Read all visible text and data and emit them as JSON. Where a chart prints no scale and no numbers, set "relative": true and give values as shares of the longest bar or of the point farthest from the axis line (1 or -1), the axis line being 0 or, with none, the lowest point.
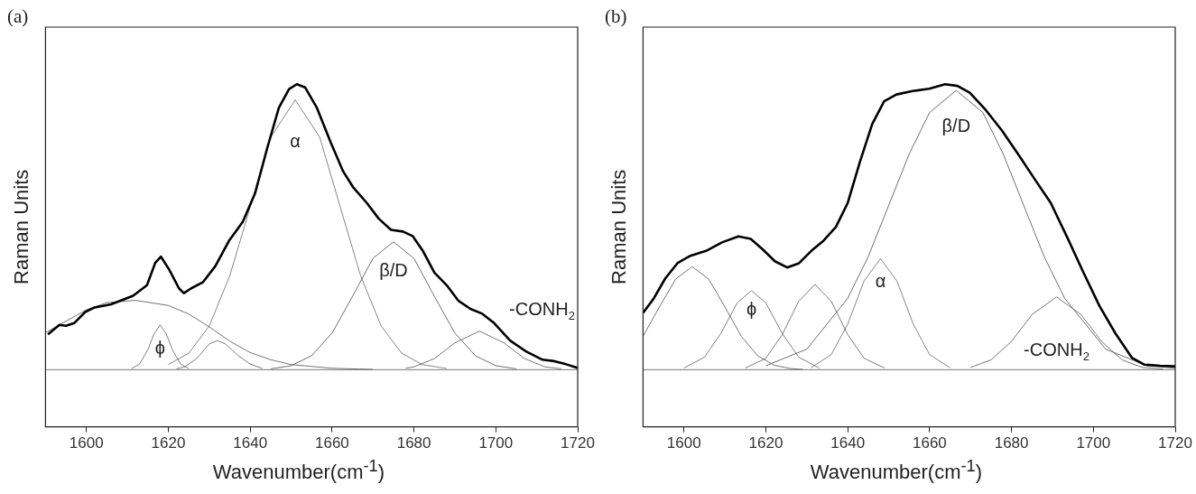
{
  "chart_data": [
    {
      "type": "line",
      "title": "(a)",
      "xlabel": "Wavenumber(cm$^{-1}$)",
      "ylabel": "Raman Units",
      "relative": true,
      "xlim": [
        1590,
        1720
      ],
      "xticks": [
        1600,
        1620,
        1640,
        1660,
        1680,
        1700,
        1720
      ],
      "annotations": [
        {
          "text": "α",
          "x": 1651,
          "y": 0.945
        },
        {
          "text": "ϕ",
          "x": 1618,
          "y": 0.157
        },
        {
          "text": "β/D",
          "x": 1675,
          "y": 0.448
        },
        {
          "text": "-CONH$_{2}$",
          "x": 1699.6,
          "y": 0.163
        }
      ],
      "series": [
        {
          "color": "#000000",
          "x": [
            1590.6,
            1593.4,
            1595,
            1597,
            1599.7,
            1602,
            1606,
            1611.4,
            1614.8,
            1616.8,
            1618.2,
            1620.2,
            1622.6,
            1623.8,
            1625.6,
            1628.5,
            1631.5,
            1634.8,
            1638.2,
            1641.2,
            1644.1,
            1647,
            1649.5,
            1651.4,
            1653.4,
            1656.3,
            1659.7,
            1662.7,
            1665.1,
            1668.5,
            1671.4,
            1674.4,
            1677.3,
            1679.7,
            1682.1,
            1685,
            1688,
            1690.9,
            1693.8,
            1696.7,
            1699.6,
            1703.5,
            1707.5,
            1711.4,
            1714.3,
            1717.2,
            1720
          ],
          "values": [
            0.124,
            0.157,
            0.154,
            0.163,
            0.202,
            0.218,
            0.229,
            0.259,
            0.296,
            0.374,
            0.396,
            0.351,
            0.285,
            0.268,
            0.285,
            0.307,
            0.363,
            0.451,
            0.518,
            0.618,
            0.773,
            0.917,
            0.983,
            1.0,
            0.989,
            0.917,
            0.795,
            0.695,
            0.64,
            0.584,
            0.529,
            0.49,
            0.484,
            0.468,
            0.418,
            0.34,
            0.296,
            0.241,
            0.213,
            0.196,
            0.163,
            0.102,
            0.063,
            0.035,
            0.03,
            0.019,
            0.006
          ]
        },
        {
          "color": "#505050",
          "x": [
            1590,
            1595,
            1600,
            1605,
            1612,
            1620,
            1625,
            1630,
            1635,
            1640,
            1645,
            1650,
            1660,
            1670
          ],
          "values": [
            0.13,
            0.17,
            0.21,
            0.235,
            0.243,
            0.225,
            0.195,
            0.15,
            0.1,
            0.06,
            0.035,
            0.018,
            0.005,
            0.001
          ]
        },
        {
          "color": "#606060",
          "x": [
            1611,
            1613,
            1615,
            1616.5,
            1618,
            1619.5,
            1621,
            1623,
            1625
          ],
          "values": [
            0.004,
            0.02,
            0.07,
            0.125,
            0.157,
            0.125,
            0.07,
            0.02,
            0.004
          ]
        },
        {
          "color": "#5a5a5a",
          "x": [
            1622,
            1624,
            1627,
            1630,
            1632,
            1634,
            1637,
            1640,
            1643
          ],
          "values": [
            0.003,
            0.01,
            0.04,
            0.09,
            0.102,
            0.09,
            0.05,
            0.02,
            0.004
          ]
        },
        {
          "color": "#666666",
          "x": [
            1620,
            1625,
            1630,
            1635,
            1640,
            1645,
            1651,
            1657,
            1662,
            1667,
            1672,
            1677,
            1682,
            1688
          ],
          "values": [
            0.018,
            0.058,
            0.153,
            0.328,
            0.57,
            0.814,
            0.945,
            0.814,
            0.57,
            0.328,
            0.153,
            0.058,
            0.018,
            0.004
          ]
        },
        {
          "color": "#4a4a4a",
          "x": [
            1645,
            1650,
            1655,
            1660,
            1665,
            1670,
            1675,
            1680,
            1685,
            1690,
            1695,
            1700,
            1705
          ],
          "values": [
            0.003,
            0.014,
            0.049,
            0.128,
            0.257,
            0.39,
            0.448,
            0.39,
            0.257,
            0.128,
            0.049,
            0.014,
            0.003
          ]
        },
        {
          "color": "#555555",
          "x": [
            1678,
            1680,
            1685,
            1690,
            1696,
            1702,
            1707,
            1712,
            1716
          ],
          "values": [
            0.005,
            0.01,
            0.039,
            0.094,
            0.135,
            0.094,
            0.039,
            0.01,
            0.003
          ]
        }
      ]
    },
    {
      "type": "line",
      "title": "(b)",
      "xlabel": "Wavenumber(cm$^{-1}$)",
      "ylabel": "Raman Units",
      "relative": true,
      "xlim": [
        1590,
        1720
      ],
      "xticks": [
        1600,
        1620,
        1640,
        1660,
        1680,
        1700,
        1720
      ],
      "annotations": [
        {
          "text": "β/D",
          "x": 1666.5,
          "y": 0.978
        },
        {
          "text": "α",
          "x": 1648,
          "y": 0.389
        },
        {
          "text": "ϕ",
          "x": 1616.5,
          "y": 0.277
        },
        {
          "text": "-CONH$_{2}$",
          "x": 1691,
          "y": 0.255
        }
      ],
      "series": [
        {
          "color": "#000000",
          "x": [
            1590,
            1592.5,
            1595.4,
            1598.4,
            1601.4,
            1605.4,
            1609.3,
            1613.3,
            1616.3,
            1619.2,
            1622.2,
            1625.2,
            1628.1,
            1631.1,
            1634.1,
            1637.1,
            1640,
            1643,
            1646,
            1648.9,
            1651.9,
            1655.9,
            1659.9,
            1663.8,
            1666.8,
            1669.8,
            1673.7,
            1677.7,
            1681.7,
            1685.6,
            1689.6,
            1693.6,
            1697.5,
            1701.5,
            1705.4,
            1709.4,
            1712.4,
            1716.3,
            1720
          ],
          "values": [
            0.199,
            0.247,
            0.319,
            0.373,
            0.398,
            0.416,
            0.446,
            0.467,
            0.458,
            0.422,
            0.38,
            0.358,
            0.373,
            0.416,
            0.452,
            0.5,
            0.584,
            0.729,
            0.861,
            0.94,
            0.964,
            0.976,
            0.984,
            1.0,
            0.994,
            0.97,
            0.91,
            0.837,
            0.753,
            0.669,
            0.584,
            0.464,
            0.343,
            0.223,
            0.127,
            0.042,
            0.018,
            0.014,
            0.012
          ]
        },
        {
          "color": "#505050",
          "x": [
            1590,
            1594,
            1598,
            1602,
            1606,
            1610,
            1614,
            1618,
            1622,
            1626,
            1629
          ],
          "values": [
            0.117,
            0.22,
            0.318,
            0.361,
            0.318,
            0.22,
            0.117,
            0.049,
            0.016,
            0.004,
            0.001
          ]
        },
        {
          "color": "#606060",
          "x": [
            1600,
            1605,
            1609,
            1613,
            1616.5,
            1620,
            1624,
            1628,
            1633
          ],
          "values": [
            0.006,
            0.044,
            0.127,
            0.234,
            0.277,
            0.234,
            0.127,
            0.044,
            0.006
          ]
        },
        {
          "color": "#5a5a5a",
          "x": [
            1615,
            1620,
            1624,
            1628,
            1632,
            1636,
            1640,
            1644,
            1649
          ],
          "values": [
            0.006,
            0.04,
            0.123,
            0.239,
            0.299,
            0.239,
            0.123,
            0.04,
            0.006
          ]
        },
        {
          "color": "#666666",
          "x": [
            1631,
            1636,
            1640,
            1644,
            1648,
            1652,
            1656,
            1660,
            1665
          ],
          "values": [
            0.007,
            0.053,
            0.16,
            0.311,
            0.389,
            0.311,
            0.16,
            0.053,
            0.007
          ]
        },
        {
          "color": "#4a4a4a",
          "x": [
            1620,
            1630,
            1640,
            1645,
            1650,
            1655,
            1660,
            1666.5,
            1673,
            1678,
            1683,
            1688,
            1693,
            1703,
            1713,
            1720
          ],
          "values": [
            0.014,
            0.072,
            0.25,
            0.396,
            0.575,
            0.755,
            0.901,
            0.978,
            0.901,
            0.755,
            0.575,
            0.396,
            0.25,
            0.072,
            0.014,
            0.005
          ]
        },
        {
          "color": "#555555",
          "x": [
            1670,
            1675,
            1680,
            1685,
            1691,
            1697,
            1702,
            1707,
            1712,
            1717
          ],
          "values": [
            0.008,
            0.0345,
            0.099,
            0.193,
            0.255,
            0.193,
            0.099,
            0.0345,
            0.008,
            0.002
          ]
        }
      ]
    }
  ]
}
